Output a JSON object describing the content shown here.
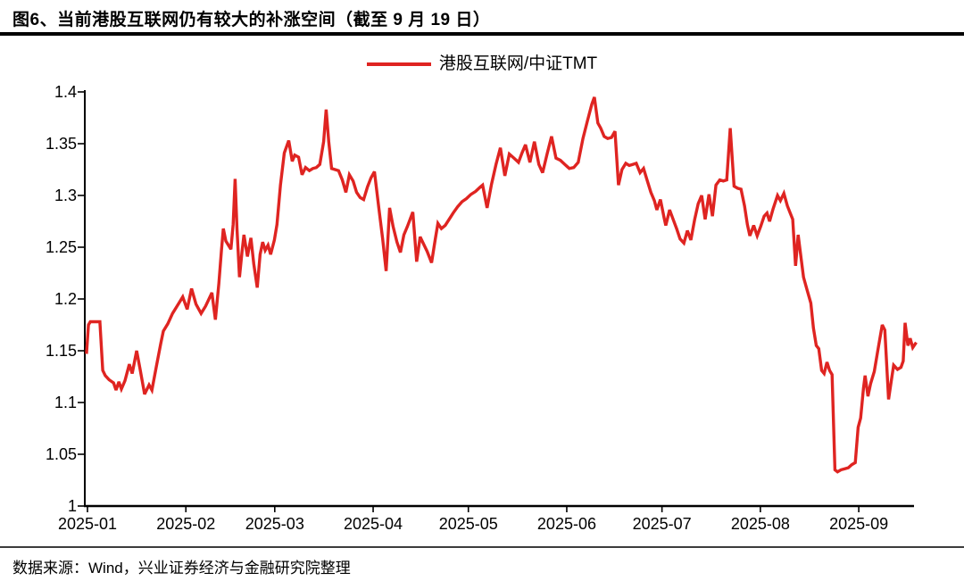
{
  "figure": {
    "title": "图6、当前港股互联网仍有较大的补涨空间（截至 9 月 19 日）",
    "source_note": "数据来源：Wind，兴业证券经济与金融研究院整理"
  },
  "legend": {
    "label": "港股互联网/中证TMT"
  },
  "colors": {
    "line": "#df2421",
    "axis": "#000000",
    "title_rule": "#000000",
    "separator": "#3c3c3c",
    "text": "#000000",
    "background": "#ffffff"
  },
  "chart_data": {
    "type": "line",
    "title": "",
    "xlabel": "",
    "ylabel": "",
    "grid": false,
    "legend_position": "top-center",
    "x_axis": {
      "unit": "day-of-year 2025",
      "tick_labels": [
        "2025-01",
        "2025-02",
        "2025-03",
        "2025-04",
        "2025-05",
        "2025-06",
        "2025-07",
        "2025-08",
        "2025-09"
      ],
      "tick_days": [
        1,
        32,
        60,
        91,
        121,
        152,
        182,
        213,
        244
      ],
      "end_day": 262
    },
    "y_axis": {
      "tick_labels": [
        "1",
        "1.05",
        "1.1",
        "1.15",
        "1.2",
        "1.25",
        "1.3",
        "1.35",
        "1.4"
      ],
      "tick_values": [
        1,
        1.05,
        1.1,
        1.15,
        1.2,
        1.25,
        1.3,
        1.35,
        1.4
      ],
      "range": [
        1,
        1.4
      ]
    },
    "series": [
      {
        "name": "港股互联网/中证TMT",
        "color": "#df2421",
        "points": [
          [
            0.7,
            1.147
          ],
          [
            1.3,
            1.175
          ],
          [
            1.9,
            1.178
          ],
          [
            4.9,
            1.178
          ],
          [
            5.8,
            1.131
          ],
          [
            6.6,
            1.126
          ],
          [
            7.8,
            1.122
          ],
          [
            9.2,
            1.119
          ],
          [
            10.0,
            1.112
          ],
          [
            10.9,
            1.12
          ],
          [
            11.7,
            1.113
          ],
          [
            12.8,
            1.121
          ],
          [
            14.2,
            1.137
          ],
          [
            15.1,
            1.128
          ],
          [
            16.5,
            1.15
          ],
          [
            17.6,
            1.132
          ],
          [
            19.0,
            1.108
          ],
          [
            20.4,
            1.117
          ],
          [
            21.3,
            1.112
          ],
          [
            22.7,
            1.135
          ],
          [
            24.1,
            1.157
          ],
          [
            24.9,
            1.169
          ],
          [
            26.3,
            1.176
          ],
          [
            27.8,
            1.186
          ],
          [
            29.2,
            1.193
          ],
          [
            31.0,
            1.202
          ],
          [
            32.4,
            1.19
          ],
          [
            33.8,
            1.21
          ],
          [
            35.2,
            1.195
          ],
          [
            36.8,
            1.186
          ],
          [
            38.2,
            1.193
          ],
          [
            40.2,
            1.206
          ],
          [
            41.3,
            1.18
          ],
          [
            42.4,
            1.215
          ],
          [
            43.2,
            1.247
          ],
          [
            43.8,
            1.268
          ],
          [
            44.6,
            1.256
          ],
          [
            45.4,
            1.252
          ],
          [
            46.2,
            1.248
          ],
          [
            46.9,
            1.272
          ],
          [
            47.5,
            1.316
          ],
          [
            48.1,
            1.268
          ],
          [
            48.9,
            1.221
          ],
          [
            49.7,
            1.246
          ],
          [
            50.3,
            1.262
          ],
          [
            51.4,
            1.241
          ],
          [
            52.5,
            1.259
          ],
          [
            53.4,
            1.234
          ],
          [
            54.5,
            1.211
          ],
          [
            55.4,
            1.243
          ],
          [
            56.2,
            1.255
          ],
          [
            57.0,
            1.247
          ],
          [
            57.9,
            1.252
          ],
          [
            58.7,
            1.243
          ],
          [
            59.9,
            1.257
          ],
          [
            60.7,
            1.272
          ],
          [
            61.8,
            1.31
          ],
          [
            63.0,
            1.341
          ],
          [
            64.4,
            1.353
          ],
          [
            65.5,
            1.333
          ],
          [
            66.3,
            1.339
          ],
          [
            67.5,
            1.337
          ],
          [
            68.6,
            1.32
          ],
          [
            69.7,
            1.327
          ],
          [
            70.9,
            1.324
          ],
          [
            72.0,
            1.326
          ],
          [
            73.1,
            1.327
          ],
          [
            74.2,
            1.33
          ],
          [
            75.4,
            1.352
          ],
          [
            76.2,
            1.383
          ],
          [
            77.0,
            1.352
          ],
          [
            77.9,
            1.326
          ],
          [
            79.0,
            1.325
          ],
          [
            80.1,
            1.324
          ],
          [
            81.3,
            1.315
          ],
          [
            82.4,
            1.303
          ],
          [
            83.5,
            1.32
          ],
          [
            84.7,
            1.314
          ],
          [
            85.8,
            1.303
          ],
          [
            86.9,
            1.298
          ],
          [
            88.0,
            1.296
          ],
          [
            89.2,
            1.308
          ],
          [
            90.3,
            1.317
          ],
          [
            91.4,
            1.323
          ],
          [
            92.8,
            1.288
          ],
          [
            94.0,
            1.258
          ],
          [
            95.1,
            1.227
          ],
          [
            96.2,
            1.288
          ],
          [
            97.3,
            1.27
          ],
          [
            98.5,
            1.255
          ],
          [
            99.6,
            1.245
          ],
          [
            100.7,
            1.262
          ],
          [
            101.8,
            1.27
          ],
          [
            103.5,
            1.284
          ],
          [
            104.7,
            1.236
          ],
          [
            105.8,
            1.26
          ],
          [
            106.9,
            1.253
          ],
          [
            108.0,
            1.246
          ],
          [
            109.4,
            1.235
          ],
          [
            110.6,
            1.258
          ],
          [
            111.4,
            1.273
          ],
          [
            112.5,
            1.268
          ],
          [
            113.7,
            1.271
          ],
          [
            116.2,
            1.283
          ],
          [
            117.6,
            1.289
          ],
          [
            119.0,
            1.294
          ],
          [
            120.4,
            1.297
          ],
          [
            121.8,
            1.301
          ],
          [
            123.3,
            1.304
          ],
          [
            124.7,
            1.308
          ],
          [
            125.5,
            1.31
          ],
          [
            126.9,
            1.288
          ],
          [
            128.3,
            1.311
          ],
          [
            129.7,
            1.33
          ],
          [
            131.1,
            1.346
          ],
          [
            132.5,
            1.319
          ],
          [
            133.9,
            1.34
          ],
          [
            135.4,
            1.336
          ],
          [
            136.8,
            1.332
          ],
          [
            137.9,
            1.341
          ],
          [
            139.0,
            1.349
          ],
          [
            140.4,
            1.332
          ],
          [
            141.8,
            1.352
          ],
          [
            143.2,
            1.33
          ],
          [
            144.4,
            1.322
          ],
          [
            145.8,
            1.34
          ],
          [
            147.2,
            1.357
          ],
          [
            148.6,
            1.336
          ],
          [
            150.0,
            1.334
          ],
          [
            151.4,
            1.33
          ],
          [
            152.8,
            1.326
          ],
          [
            154.2,
            1.327
          ],
          [
            155.6,
            1.332
          ],
          [
            157.1,
            1.355
          ],
          [
            158.5,
            1.372
          ],
          [
            159.9,
            1.388
          ],
          [
            160.7,
            1.395
          ],
          [
            161.8,
            1.37
          ],
          [
            162.7,
            1.365
          ],
          [
            163.8,
            1.357
          ],
          [
            164.9,
            1.355
          ],
          [
            166.1,
            1.356
          ],
          [
            167.2,
            1.362
          ],
          [
            168.3,
            1.31
          ],
          [
            169.4,
            1.325
          ],
          [
            170.6,
            1.331
          ],
          [
            171.7,
            1.329
          ],
          [
            172.8,
            1.33
          ],
          [
            173.9,
            1.331
          ],
          [
            175.1,
            1.322
          ],
          [
            176.2,
            1.326
          ],
          [
            177.3,
            1.315
          ],
          [
            178.5,
            1.303
          ],
          [
            179.6,
            1.295
          ],
          [
            180.4,
            1.286
          ],
          [
            181.5,
            1.296
          ],
          [
            182.7,
            1.278
          ],
          [
            183.2,
            1.271
          ],
          [
            184.4,
            1.286
          ],
          [
            185.5,
            1.277
          ],
          [
            186.6,
            1.268
          ],
          [
            187.7,
            1.258
          ],
          [
            188.9,
            1.254
          ],
          [
            190.0,
            1.266
          ],
          [
            191.1,
            1.257
          ],
          [
            192.3,
            1.277
          ],
          [
            193.4,
            1.292
          ],
          [
            194.5,
            1.3
          ],
          [
            195.6,
            1.277
          ],
          [
            196.8,
            1.301
          ],
          [
            197.9,
            1.28
          ],
          [
            199.0,
            1.31
          ],
          [
            200.2,
            1.315
          ],
          [
            201.3,
            1.314
          ],
          [
            202.4,
            1.315
          ],
          [
            203.5,
            1.365
          ],
          [
            204.7,
            1.309
          ],
          [
            205.8,
            1.307
          ],
          [
            206.9,
            1.306
          ],
          [
            208.0,
            1.29
          ],
          [
            208.9,
            1.272
          ],
          [
            209.7,
            1.261
          ],
          [
            210.9,
            1.271
          ],
          [
            212.0,
            1.261
          ],
          [
            213.1,
            1.27
          ],
          [
            214.2,
            1.28
          ],
          [
            215.1,
            1.283
          ],
          [
            215.9,
            1.275
          ],
          [
            217.0,
            1.287
          ],
          [
            218.4,
            1.3
          ],
          [
            219.3,
            1.295
          ],
          [
            220.4,
            1.302
          ],
          [
            221.5,
            1.29
          ],
          [
            222.4,
            1.283
          ],
          [
            223.2,
            1.277
          ],
          [
            224.1,
            1.232
          ],
          [
            224.9,
            1.262
          ],
          [
            225.8,
            1.24
          ],
          [
            226.6,
            1.221
          ],
          [
            227.7,
            1.209
          ],
          [
            228.9,
            1.196
          ],
          [
            229.7,
            1.172
          ],
          [
            230.6,
            1.155
          ],
          [
            231.4,
            1.152
          ],
          [
            232.3,
            1.131
          ],
          [
            233.1,
            1.128
          ],
          [
            234.0,
            1.139
          ],
          [
            234.8,
            1.131
          ],
          [
            235.6,
            1.127
          ],
          [
            236.5,
            1.035
          ],
          [
            237.3,
            1.033
          ],
          [
            238.4,
            1.035
          ],
          [
            239.6,
            1.036
          ],
          [
            240.7,
            1.037
          ],
          [
            241.8,
            1.04
          ],
          [
            242.9,
            1.042
          ],
          [
            243.8,
            1.076
          ],
          [
            244.6,
            1.085
          ],
          [
            245.5,
            1.114
          ],
          [
            246.0,
            1.126
          ],
          [
            246.9,
            1.106
          ],
          [
            247.7,
            1.118
          ],
          [
            248.9,
            1.13
          ],
          [
            250.0,
            1.15
          ],
          [
            251.4,
            1.175
          ],
          [
            252.2,
            1.17
          ],
          [
            253.4,
            1.103
          ],
          [
            254.2,
            1.12
          ],
          [
            255.0,
            1.136
          ],
          [
            256.2,
            1.132
          ],
          [
            257.3,
            1.134
          ],
          [
            258.0,
            1.14
          ],
          [
            258.6,
            1.177
          ],
          [
            259.5,
            1.155
          ],
          [
            260.2,
            1.162
          ],
          [
            261.0,
            1.153
          ],
          [
            262.1,
            1.158
          ]
        ]
      }
    ]
  }
}
